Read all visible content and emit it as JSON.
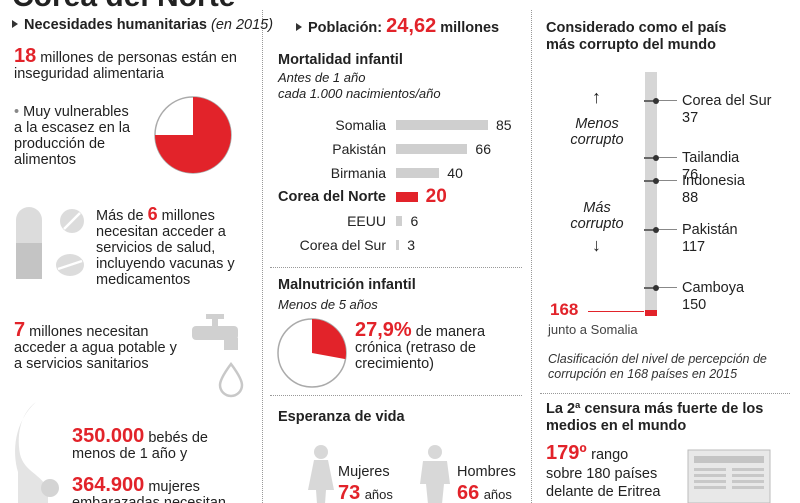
{
  "title": "Corea del Norte",
  "humanitarian": {
    "header": "Necesidades humanitarias",
    "header_note": "(en 2015)",
    "food_number": "18",
    "food_text": "millones de personas están en inseguridad alimentaria",
    "vulnerable_text": "Muy vulnerables a la escasez en la producción de alimentos",
    "vulnerable_fraction": 0.75,
    "health_prefix": "Más de",
    "health_number": "6",
    "health_unit": "millones",
    "health_text": "necesitan acceder a servicios de salud, incluyendo vacunas y medicamentos",
    "water_number": "7",
    "water_text": "millones necesitan acceder a agua potable y a servicios sanitarios",
    "babies_number": "350.000",
    "babies_text": "bebés de menos de 1 año y",
    "women_number": "364.900",
    "women_text": "mujeres embarazadas necesitan"
  },
  "population": {
    "label": "Población:",
    "value": "24,62",
    "unit": "millones"
  },
  "mortality": {
    "title": "Mortalidad infantil",
    "subtitle1": "Antes de 1 año",
    "subtitle2": "cada 1.000 nacimientos/año"
  },
  "chart_data": {
    "type": "bar",
    "categories": [
      "Somalia",
      "Pakistán",
      "Birmania",
      "Corea del Norte",
      "EEUU",
      "Corea del Sur"
    ],
    "values": [
      85,
      66,
      40,
      20,
      6,
      3
    ],
    "highlight": "Corea del Norte",
    "highlight_color": "#e2232a",
    "bar_color": "#cfcfcf"
  },
  "malnutrition": {
    "title": "Malnutrición infantil",
    "subtitle": "Menos de 5 años",
    "value": "27,9%",
    "fraction": 0.279,
    "text": "de manera crónica (retraso de crecimiento)"
  },
  "life": {
    "title": "Esperanza de vida",
    "women_label": "Mujeres",
    "women_value": "73",
    "men_label": "Hombres",
    "men_value": "66",
    "unit": "años"
  },
  "corruption": {
    "title": "Considerado como el país más corrupto del mundo",
    "less_label": "Menos corrupto",
    "more_label": "Más corrupto",
    "rank": "168",
    "rank_note": "junto a Somalia",
    "countries": [
      {
        "name": "Corea del Sur",
        "rank": "37"
      },
      {
        "name": "Tailandia",
        "rank": "76"
      },
      {
        "name": "Indonesia",
        "rank": "88"
      },
      {
        "name": "Pakistán",
        "rank": "117"
      },
      {
        "name": "Camboya",
        "rank": "150"
      }
    ],
    "footnote": "Clasificación del nivel de percepción de corrupción en 168 países en 2015"
  },
  "censorship": {
    "title": "La 2ª censura más fuerte de los medios en el mundo",
    "rank": "179º",
    "text1": "rango",
    "text2": "sobre 180 países",
    "text3": "delante de Eritrea"
  },
  "colors": {
    "accent": "#e2232a",
    "gray": "#cfcfcf",
    "dark": "#222222"
  }
}
